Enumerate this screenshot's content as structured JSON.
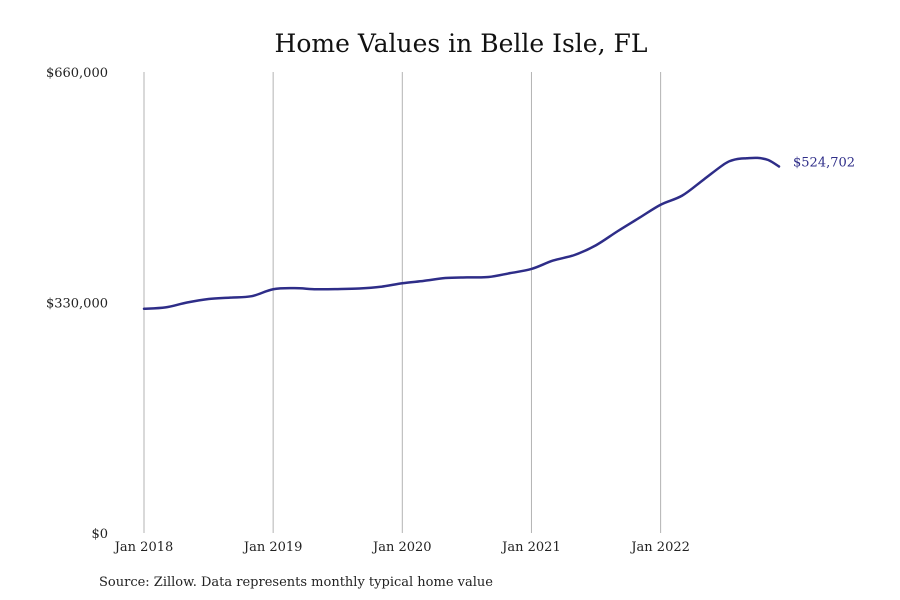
{
  "chart_data": {
    "type": "line",
    "title": "Home Values in Belle Isle, FL",
    "source": "Source: Zillow. Data represents monthly typical home value",
    "xlabel": "",
    "ylabel": "",
    "x_ticks": [
      "Jan 2018",
      "Jan 2019",
      "Jan 2020",
      "Jan 2021",
      "Jan 2022"
    ],
    "y_ticks": [
      "$0",
      "$330,000",
      "$660,000"
    ],
    "ylim": [
      0,
      660000
    ],
    "xlim": [
      "2018-01",
      "2022-12"
    ],
    "grid": "vertical",
    "line_color": "#2e2d88",
    "end_label": "$524,702",
    "series": [
      {
        "values": [
          {
            "x": "2018-01",
            "y": 321000
          },
          {
            "x": "2018-03",
            "y": 323000
          },
          {
            "x": "2018-05",
            "y": 330000
          },
          {
            "x": "2018-07",
            "y": 335000
          },
          {
            "x": "2018-09",
            "y": 337000
          },
          {
            "x": "2018-11",
            "y": 339000
          },
          {
            "x": "2019-01",
            "y": 349000
          },
          {
            "x": "2019-03",
            "y": 350500
          },
          {
            "x": "2019-05",
            "y": 349000
          },
          {
            "x": "2019-07",
            "y": 349200
          },
          {
            "x": "2019-09",
            "y": 350000
          },
          {
            "x": "2019-11",
            "y": 352500
          },
          {
            "x": "2020-01",
            "y": 357500
          },
          {
            "x": "2020-03",
            "y": 361000
          },
          {
            "x": "2020-05",
            "y": 365000
          },
          {
            "x": "2020-07",
            "y": 366000
          },
          {
            "x": "2020-09",
            "y": 366500
          },
          {
            "x": "2020-11",
            "y": 372000
          },
          {
            "x": "2021-01",
            "y": 378000
          },
          {
            "x": "2021-03",
            "y": 390000
          },
          {
            "x": "2021-05",
            "y": 398000
          },
          {
            "x": "2021-07",
            "y": 412000
          },
          {
            "x": "2021-09",
            "y": 432000
          },
          {
            "x": "2021-11",
            "y": 451000
          },
          {
            "x": "2022-01",
            "y": 470000
          },
          {
            "x": "2022-03",
            "y": 483000
          },
          {
            "x": "2022-05",
            "y": 506000
          },
          {
            "x": "2022-07",
            "y": 529000
          },
          {
            "x": "2022-08",
            "y": 535000
          },
          {
            "x": "2022-09",
            "y": 536500
          },
          {
            "x": "2022-10",
            "y": 537000
          },
          {
            "x": "2022-11",
            "y": 534000
          },
          {
            "x": "2022-12",
            "y": 524702
          }
        ]
      }
    ]
  }
}
